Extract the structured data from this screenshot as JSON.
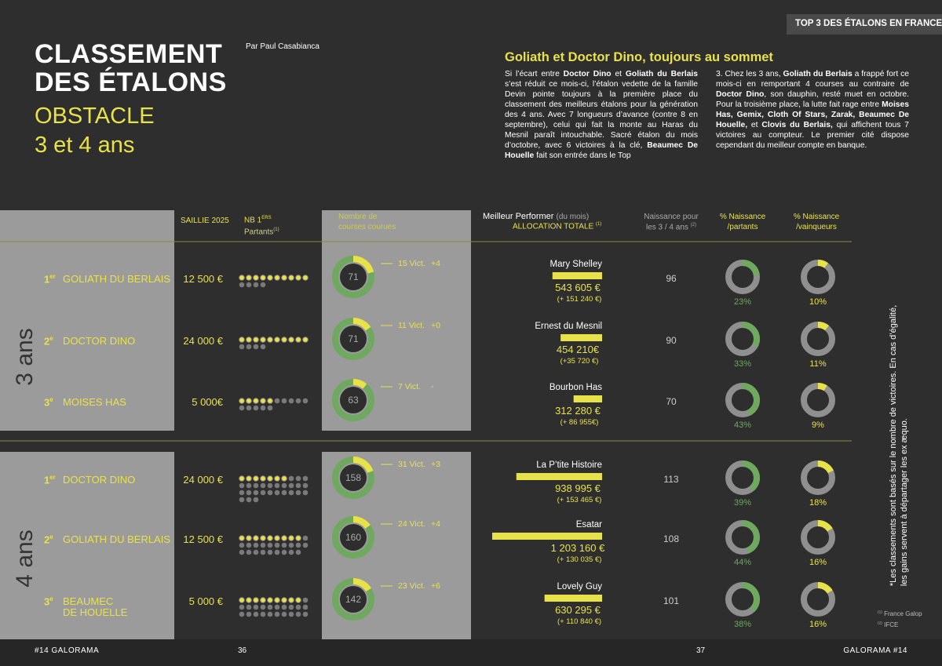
{
  "badge": "TOP 3 DES ÉTALONS EN FRANCE",
  "title": {
    "lines": [
      "CLASSEMENT",
      "DES ÉTALONS"
    ],
    "subtitle": [
      "OBSTACLE",
      "3 et 4 ans"
    ]
  },
  "byline": "Par Paul Casabianca",
  "article": {
    "heading": "Goliath et Doctor Dino, toujours au sommet",
    "columns": [
      [
        {
          "text": "Si l’écart entre "
        },
        {
          "text": "Doctor Dino",
          "bold": true
        },
        {
          "text": " et "
        },
        {
          "text": "Goliath du Berlais",
          "bold": true
        },
        {
          "text": " s’est réduit ce mois-ci, l’étalon vedette de la famille Devin pointe toujours à la première place du classement des meilleurs étalons pour la génération des 4 ans. Avec 7 longueurs d’avance (contre 8 en septembre), celui qui fait la monte au Haras du Mesnil paraît intouchable. Sacré étalon du mois d’octobre, avec 6 victoires à la clé, "
        },
        {
          "text": "Beaumec De Houelle",
          "bold": true
        },
        {
          "text": " fait son entrée dans le Top"
        }
      ],
      [
        {
          "text": "3. Chez les 3 ans, "
        },
        {
          "text": "Goliath du Berlais",
          "bold": true
        },
        {
          "text": " a frappé fort ce mois-ci en remportant 4 courses au contraire de "
        },
        {
          "text": "Doctor Dino",
          "bold": true
        },
        {
          "text": ", son dauphin, resté muet en octobre. Pour la troisième place, la lutte fait rage entre "
        },
        {
          "text": "Moises Has, Gemix, Cloth Of Stars, Zarak, Beaumec De Houelle,",
          "bold": true
        },
        {
          "text": " et "
        },
        {
          "text": "Clovis du Berlais,",
          "bold": true
        },
        {
          "text": " qui affichent tous 7 victoires au compteur. Le premier cité dispose cependant du meilleur compte en banque."
        }
      ]
    ]
  },
  "headers": {
    "saillie": "SAILLIE 2025",
    "partants": {
      "main": "NB 1",
      "sup": "ERS",
      "sub": "Partants",
      "note": "(1)"
    },
    "courses": [
      "Nombre de",
      "courses courues"
    ],
    "performer": {
      "main": "Meilleur Performer",
      "aside": "(du mois)",
      "sub": "ALLOCATION TOTALE",
      "note": "(1)"
    },
    "naissance": {
      "lines": [
        "Naissance pour",
        "les 3 / 4 ans"
      ],
      "note": "(2)"
    },
    "pct_partants": [
      "% Naissance",
      "/partants"
    ],
    "pct_vainqueurs": [
      "% Naissance",
      "/vainqueurs"
    ]
  },
  "groups": [
    {
      "label": "3 ans",
      "rows": [
        {
          "rank": "1",
          "rank_sup": "er",
          "name": [
            "GOLIATH DU BERLAIS"
          ],
          "saillie": "12 500 €",
          "dots_yellow": 10,
          "dots_gray": 4,
          "courses": 71,
          "victories": 15,
          "victories_label": "15 Vict.",
          "delta": "+4",
          "performer": "Mary Shelley",
          "allocation": 543605,
          "allocation_label": "543 605 €",
          "allocation_delta": "(+ 151 240 €)",
          "naissance": 96,
          "pct_partants": 23,
          "pct_partants_label": "23%",
          "pct_vainqueurs": 10,
          "pct_vainqueurs_label": "10%"
        },
        {
          "rank": "2",
          "rank_sup": "e",
          "name": [
            "DOCTOR DINO"
          ],
          "saillie": "24 000 €",
          "dots_yellow": 10,
          "dots_gray": 4,
          "courses": 71,
          "victories": 11,
          "victories_label": "11 Vict.",
          "delta": "+0",
          "performer": "Ernest du Mesnil",
          "allocation": 454210,
          "allocation_label": "454 210€",
          "allocation_delta": "(+35 720 €)",
          "naissance": 90,
          "pct_partants": 33,
          "pct_partants_label": "33%",
          "pct_vainqueurs": 11,
          "pct_vainqueurs_label": "11%"
        },
        {
          "rank": "3",
          "rank_sup": "e",
          "name": [
            "MOISES HAS"
          ],
          "saillie": "5 000€",
          "dots_yellow": 5,
          "dots_gray": 10,
          "courses": 63,
          "victories": 7,
          "victories_label": "7 Vict.",
          "delta": "-",
          "performer": "Bourbon Has",
          "allocation": 312280,
          "allocation_label": "312 280 €",
          "allocation_delta": "(+ 86 955€)",
          "naissance": 70,
          "pct_partants": 43,
          "pct_partants_label": "43%",
          "pct_vainqueurs": 9,
          "pct_vainqueurs_label": "9%"
        }
      ]
    },
    {
      "label": "4 ans",
      "rows": [
        {
          "rank": "1",
          "rank_sup": "er",
          "name": [
            "DOCTOR DINO"
          ],
          "saillie": "24 000 €",
          "dots_yellow": 7,
          "dots_gray": 26,
          "courses": 158,
          "victories": 31,
          "victories_label": "31 Vict.",
          "delta": "+3",
          "performer": "La P’tite Histoire",
          "allocation": 938995,
          "allocation_label": "938 995 €",
          "allocation_delta": "(+ 153 465 €)",
          "naissance": 113,
          "pct_partants": 39,
          "pct_partants_label": "39%",
          "pct_vainqueurs": 18,
          "pct_vainqueurs_label": "18%"
        },
        {
          "rank": "2",
          "rank_sup": "e",
          "name": [
            "GOLIATH DU BERLAIS"
          ],
          "saillie": "12 500 €",
          "dots_yellow": 9,
          "dots_gray": 20,
          "courses": 160,
          "victories": 24,
          "victories_label": "24 Vict.",
          "delta": "+4",
          "performer": "Esatar",
          "allocation": 1203160,
          "allocation_label": "1 203 160 €",
          "allocation_delta": "(+ 130 035 €)",
          "naissance": 108,
          "pct_partants": 44,
          "pct_partants_label": "44%",
          "pct_vainqueurs": 16,
          "pct_vainqueurs_label": "16%"
        },
        {
          "rank": "3",
          "rank_sup": "e",
          "name": [
            "BEAUMEC",
            "DE HOUELLE"
          ],
          "saillie": "5 000 €",
          "dots_yellow": 9,
          "dots_gray": 21,
          "courses": 142,
          "victories": 23,
          "victories_label": "23 Vict.",
          "delta": "+6",
          "performer": "Lovely Guy",
          "allocation": 630295,
          "allocation_label": "630 295 €",
          "allocation_delta": "(+  110 840 €)",
          "naissance": 101,
          "pct_partants": 38,
          "pct_partants_label": "38%",
          "pct_vainqueurs": 16,
          "pct_vainqueurs_label": "16%"
        }
      ]
    }
  ],
  "side_note": [
    "*Les classements sont basés sur le nombre de victoires. En cas d’égalité,",
    "les gains servent à départager les ex æquo."
  ],
  "footnotes": [
    {
      "mark": "(1)",
      "text": "France Galop"
    },
    {
      "mark": "(2)",
      "text": "IFCE"
    }
  ],
  "footer": {
    "left": "#14 GALORAMA",
    "page_left": "36",
    "page_right": "37",
    "right": "GALORAMA #14"
  }
}
